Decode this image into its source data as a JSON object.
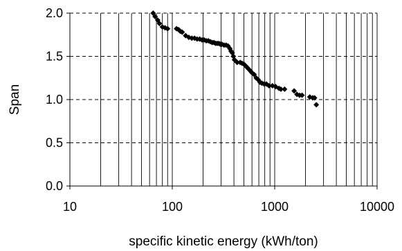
{
  "chart_data": {
    "type": "scatter",
    "title": "",
    "xlabel": "specific kinetic energy (kWh/ton)",
    "ylabel": "Span",
    "x_scale": "log",
    "xlim": [
      10,
      10000
    ],
    "ylim": [
      0.0,
      2.0
    ],
    "x_ticks": [
      "10",
      "100",
      "1000",
      "10000"
    ],
    "y_ticks": [
      "0.0",
      "0.5",
      "1.0",
      "1.5",
      "2.0"
    ],
    "grid": {
      "x": "vertical lines at every log minor step",
      "y": "dashed at major ticks"
    },
    "legend": "none",
    "marker": "diamond",
    "marker_color": "#000000",
    "x": [
      65,
      68,
      72,
      75,
      80,
      85,
      90,
      110,
      115,
      120,
      125,
      135,
      145,
      155,
      165,
      175,
      185,
      195,
      205,
      215,
      225,
      235,
      245,
      255,
      265,
      275,
      285,
      295,
      305,
      320,
      335,
      350,
      365,
      375,
      385,
      395,
      405,
      430,
      460,
      480,
      500,
      520,
      540,
      560,
      580,
      600,
      630,
      660,
      690,
      720,
      750,
      790,
      830,
      880,
      950,
      1020,
      1100,
      1150,
      1250,
      1550,
      1650,
      1750,
      1850,
      2200,
      2350,
      2450,
      2550
    ],
    "y": [
      2.0,
      1.96,
      1.92,
      1.88,
      1.84,
      1.83,
      1.82,
      1.82,
      1.81,
      1.79,
      1.78,
      1.74,
      1.72,
      1.71,
      1.71,
      1.7,
      1.7,
      1.69,
      1.69,
      1.68,
      1.68,
      1.67,
      1.66,
      1.66,
      1.65,
      1.65,
      1.65,
      1.64,
      1.64,
      1.63,
      1.63,
      1.62,
      1.59,
      1.56,
      1.54,
      1.5,
      1.46,
      1.43,
      1.43,
      1.42,
      1.41,
      1.39,
      1.37,
      1.35,
      1.33,
      1.31,
      1.29,
      1.25,
      1.23,
      1.2,
      1.19,
      1.18,
      1.18,
      1.16,
      1.16,
      1.15,
      1.13,
      1.12,
      1.12,
      1.1,
      1.06,
      1.05,
      1.05,
      1.03,
      1.02,
      1.02,
      0.94
    ]
  }
}
